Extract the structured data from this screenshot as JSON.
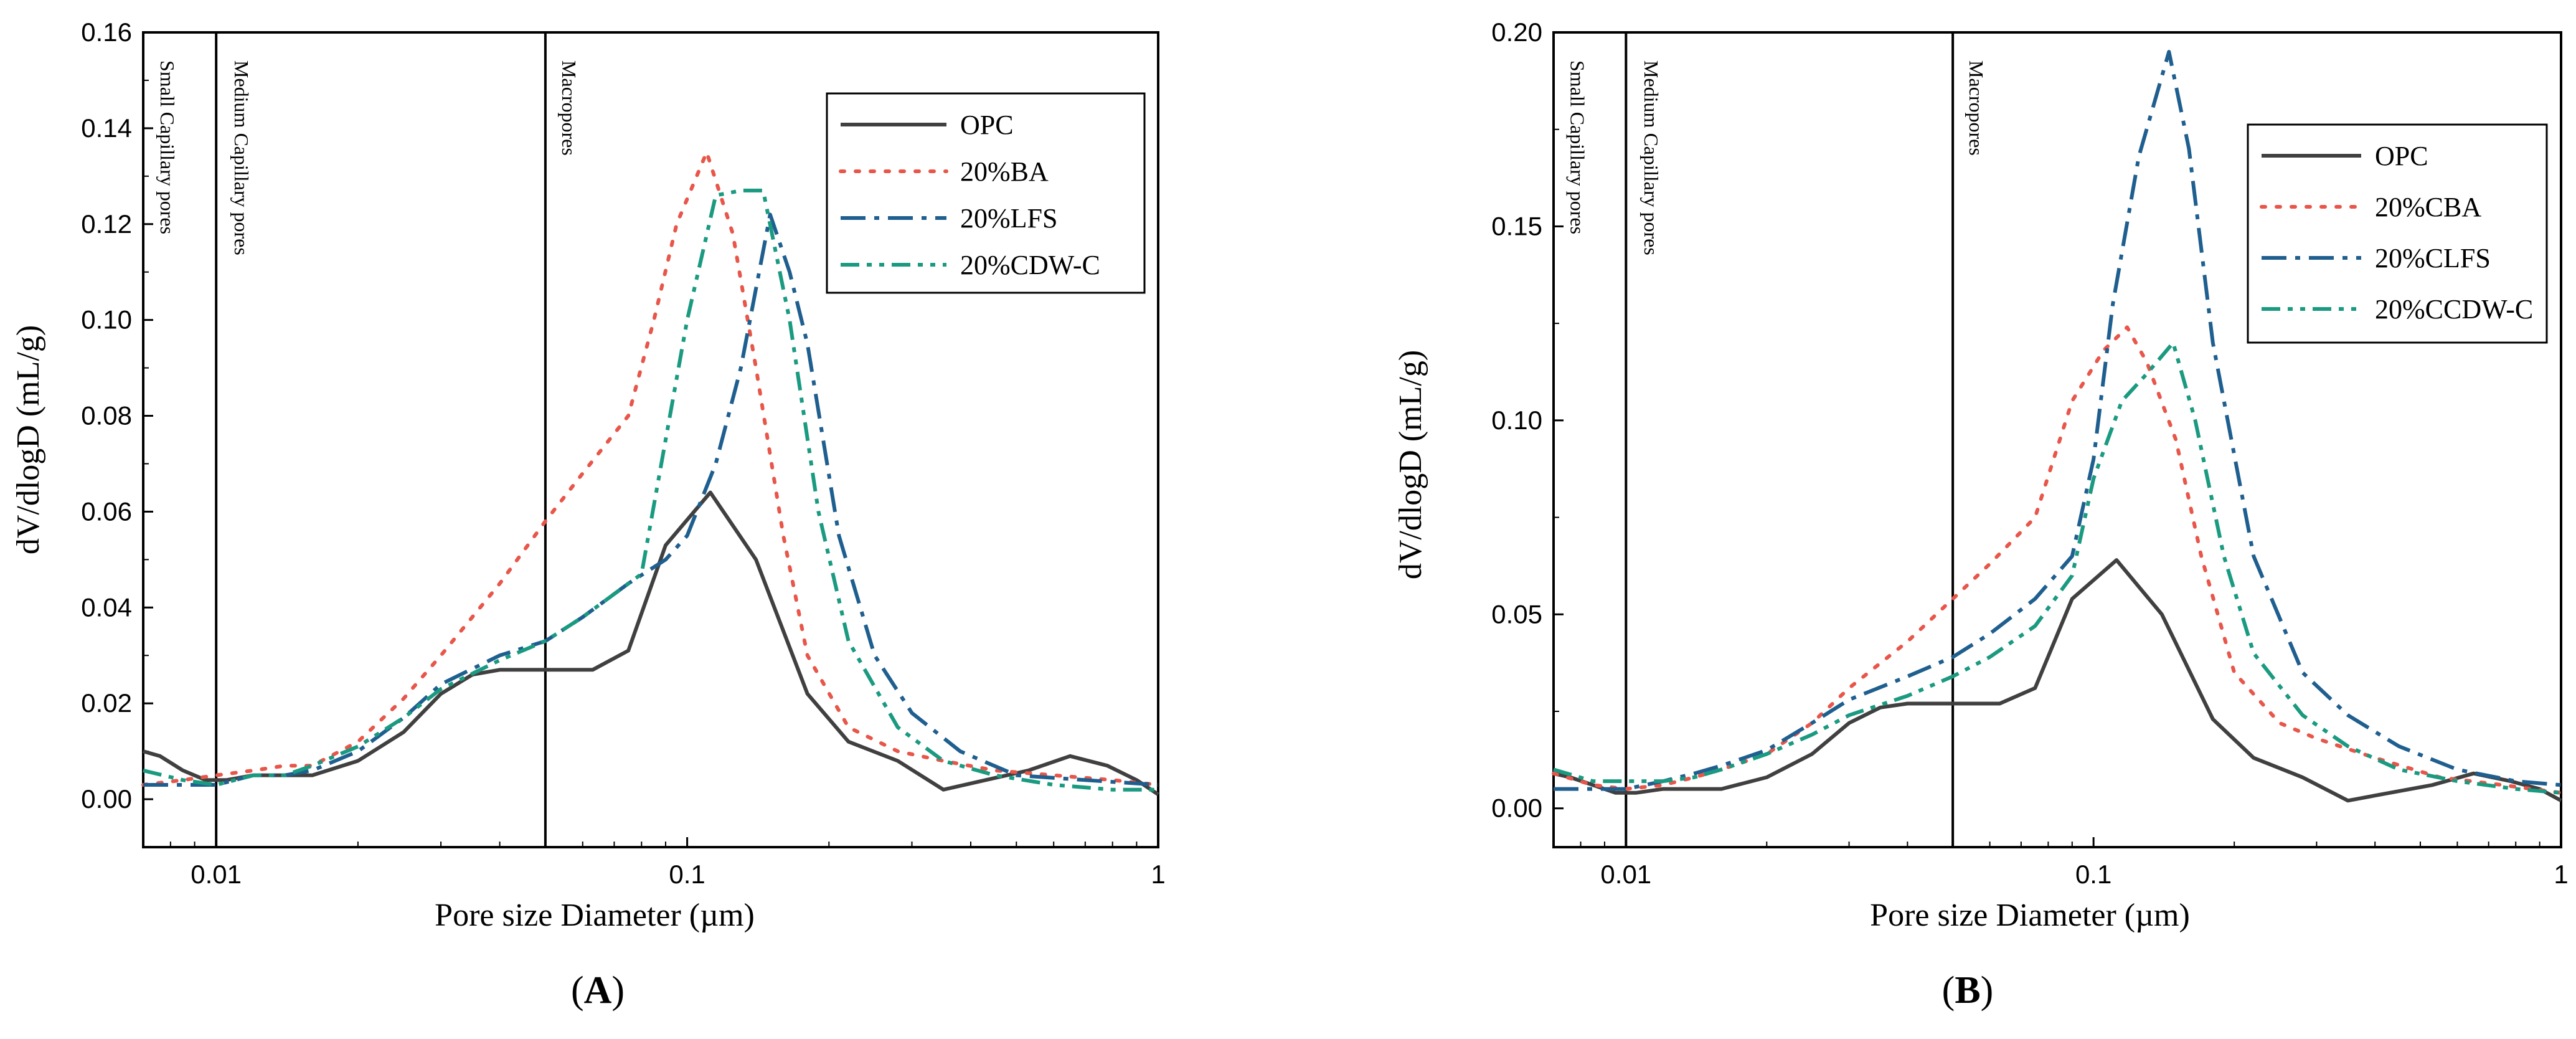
{
  "colors": {
    "OPC": "#404040",
    "BA": "#e8564a",
    "LFS": "#1f5f8f",
    "CDW": "#1a9a80",
    "axis": "#000000"
  },
  "chart_data": [
    {
      "panel_label": "A",
      "type": "line",
      "xlabel": "Pore size Diameter (µm)",
      "ylabel": "dV/dlogD (mL/g)",
      "x_scale": "log",
      "xlim": [
        0.007,
        1
      ],
      "ylim": [
        -0.01,
        0.16
      ],
      "xticks": [
        {
          "value": 0.01,
          "label": "0.01"
        },
        {
          "value": 0.1,
          "label": "0.1"
        },
        {
          "value": 1,
          "label": "1"
        }
      ],
      "yticks": [
        {
          "value": 0,
          "label": "0.00"
        },
        {
          "value": 0.02,
          "label": "0.02"
        },
        {
          "value": 0.04,
          "label": "0.04"
        },
        {
          "value": 0.06,
          "label": "0.06"
        },
        {
          "value": 0.08,
          "label": "0.08"
        },
        {
          "value": 0.1,
          "label": "0.10"
        },
        {
          "value": 0.12,
          "label": "0.12"
        },
        {
          "value": 0.14,
          "label": "0.14"
        },
        {
          "value": 0.16,
          "label": "0.16"
        }
      ],
      "region_lines": [
        0.01,
        0.05
      ],
      "region_labels": [
        {
          "text": "Small Capillary pores",
          "x": 0.0073
        },
        {
          "text": "Medium Capillary pores",
          "x": 0.0105
        },
        {
          "text": "Macropores",
          "x": 0.052
        }
      ],
      "legend_position": "top-right",
      "series": [
        {
          "name": "OPC",
          "style": "solid",
          "color_key": "OPC",
          "x": [
            0.007,
            0.0076,
            0.0085,
            0.0095,
            0.0105,
            0.012,
            0.014,
            0.016,
            0.02,
            0.025,
            0.03,
            0.035,
            0.04,
            0.05,
            0.063,
            0.075,
            0.09,
            0.112,
            0.14,
            0.18,
            0.22,
            0.28,
            0.35,
            0.43,
            0.53,
            0.65,
            0.78,
            0.9,
            1.0
          ],
          "y": [
            0.01,
            0.009,
            0.006,
            0.004,
            0.004,
            0.005,
            0.005,
            0.005,
            0.008,
            0.014,
            0.022,
            0.026,
            0.027,
            0.027,
            0.027,
            0.031,
            0.053,
            0.064,
            0.05,
            0.022,
            0.012,
            0.008,
            0.002,
            0.004,
            0.006,
            0.009,
            0.007,
            0.004,
            0.001
          ]
        },
        {
          "name": "20%BA",
          "style": "dotted",
          "color_key": "BA",
          "x": [
            0.007,
            0.0085,
            0.01,
            0.012,
            0.014,
            0.016,
            0.02,
            0.025,
            0.03,
            0.04,
            0.05,
            0.06,
            0.075,
            0.085,
            0.095,
            0.11,
            0.125,
            0.14,
            0.16,
            0.18,
            0.22,
            0.28,
            0.35,
            0.45,
            0.6,
            0.8,
            1.0
          ],
          "y": [
            0.003,
            0.004,
            0.005,
            0.006,
            0.007,
            0.007,
            0.012,
            0.021,
            0.03,
            0.045,
            0.058,
            0.068,
            0.08,
            0.1,
            0.12,
            0.135,
            0.118,
            0.09,
            0.055,
            0.03,
            0.015,
            0.01,
            0.008,
            0.006,
            0.005,
            0.004,
            0.003
          ]
        },
        {
          "name": "20%LFS",
          "style": "dashdot",
          "color_key": "LFS",
          "x": [
            0.007,
            0.0085,
            0.01,
            0.012,
            0.014,
            0.016,
            0.02,
            0.025,
            0.03,
            0.04,
            0.05,
            0.06,
            0.075,
            0.09,
            0.1,
            0.115,
            0.13,
            0.15,
            0.165,
            0.18,
            0.21,
            0.25,
            0.3,
            0.38,
            0.5,
            0.7,
            1.0
          ],
          "y": [
            0.003,
            0.003,
            0.003,
            0.005,
            0.005,
            0.006,
            0.01,
            0.017,
            0.024,
            0.03,
            0.033,
            0.038,
            0.045,
            0.05,
            0.055,
            0.07,
            0.09,
            0.122,
            0.11,
            0.095,
            0.055,
            0.03,
            0.018,
            0.01,
            0.005,
            0.004,
            0.003
          ]
        },
        {
          "name": "20%CDW-C",
          "style": "dashdotdot",
          "color_key": "CDW",
          "x": [
            0.007,
            0.0085,
            0.01,
            0.012,
            0.014,
            0.016,
            0.02,
            0.025,
            0.03,
            0.04,
            0.05,
            0.06,
            0.08,
            0.09,
            0.1,
            0.115,
            0.13,
            0.145,
            0.165,
            0.19,
            0.22,
            0.28,
            0.35,
            0.45,
            0.6,
            0.8,
            1.0
          ],
          "y": [
            0.006,
            0.004,
            0.003,
            0.005,
            0.005,
            0.007,
            0.011,
            0.017,
            0.023,
            0.029,
            0.033,
            0.038,
            0.047,
            0.075,
            0.1,
            0.126,
            0.127,
            0.127,
            0.1,
            0.06,
            0.033,
            0.015,
            0.008,
            0.005,
            0.003,
            0.002,
            0.002
          ]
        }
      ]
    },
    {
      "panel_label": "B",
      "type": "line",
      "xlabel": "Pore size Diameter (µm)",
      "ylabel": "dV/dlogD (mL/g)",
      "x_scale": "log",
      "xlim": [
        0.007,
        1
      ],
      "ylim": [
        -0.01,
        0.2
      ],
      "xticks": [
        {
          "value": 0.01,
          "label": "0.01"
        },
        {
          "value": 0.1,
          "label": "0.1"
        },
        {
          "value": 1,
          "label": "1"
        }
      ],
      "yticks": [
        {
          "value": 0,
          "label": "0.00"
        },
        {
          "value": 0.05,
          "label": "0.05"
        },
        {
          "value": 0.1,
          "label": "0.10"
        },
        {
          "value": 0.15,
          "label": "0.15"
        },
        {
          "value": 0.2,
          "label": "0.20"
        }
      ],
      "region_lines": [
        0.01,
        0.05
      ],
      "region_labels": [
        {
          "text": "Small Capillary pores",
          "x": 0.0073
        },
        {
          "text": "Medium Capillary pores",
          "x": 0.0105
        },
        {
          "text": "Macropores",
          "x": 0.052
        }
      ],
      "legend_position": "top-right",
      "series": [
        {
          "name": "OPC",
          "style": "solid",
          "color_key": "OPC",
          "x": [
            0.007,
            0.0076,
            0.0085,
            0.0095,
            0.0105,
            0.012,
            0.014,
            0.016,
            0.02,
            0.025,
            0.03,
            0.035,
            0.04,
            0.05,
            0.063,
            0.075,
            0.09,
            0.112,
            0.14,
            0.18,
            0.22,
            0.28,
            0.35,
            0.43,
            0.53,
            0.65,
            0.78,
            0.9,
            1.0
          ],
          "y": [
            0.009,
            0.008,
            0.006,
            0.004,
            0.004,
            0.005,
            0.005,
            0.005,
            0.008,
            0.014,
            0.022,
            0.026,
            0.027,
            0.027,
            0.027,
            0.031,
            0.054,
            0.064,
            0.05,
            0.023,
            0.013,
            0.008,
            0.002,
            0.004,
            0.006,
            0.009,
            0.007,
            0.005,
            0.002
          ]
        },
        {
          "name": "20%CBA",
          "style": "dotted",
          "color_key": "BA",
          "x": [
            0.007,
            0.0085,
            0.01,
            0.012,
            0.014,
            0.016,
            0.02,
            0.025,
            0.03,
            0.04,
            0.05,
            0.06,
            0.075,
            0.09,
            0.105,
            0.118,
            0.13,
            0.15,
            0.17,
            0.2,
            0.25,
            0.3,
            0.4,
            0.55,
            0.75,
            1.0
          ],
          "y": [
            0.009,
            0.006,
            0.005,
            0.006,
            0.008,
            0.01,
            0.014,
            0.022,
            0.031,
            0.043,
            0.054,
            0.063,
            0.075,
            0.105,
            0.118,
            0.124,
            0.115,
            0.095,
            0.065,
            0.035,
            0.022,
            0.018,
            0.013,
            0.008,
            0.006,
            0.004
          ]
        },
        {
          "name": "20%CLFS",
          "style": "dashdot",
          "color_key": "LFS",
          "x": [
            0.007,
            0.0085,
            0.01,
            0.012,
            0.014,
            0.016,
            0.02,
            0.025,
            0.03,
            0.04,
            0.05,
            0.06,
            0.075,
            0.09,
            0.1,
            0.11,
            0.125,
            0.145,
            0.16,
            0.18,
            0.22,
            0.28,
            0.35,
            0.45,
            0.6,
            0.8,
            1.0
          ],
          "y": [
            0.005,
            0.005,
            0.005,
            0.007,
            0.009,
            0.011,
            0.015,
            0.022,
            0.028,
            0.034,
            0.039,
            0.045,
            0.054,
            0.065,
            0.09,
            0.13,
            0.168,
            0.195,
            0.17,
            0.12,
            0.065,
            0.035,
            0.024,
            0.016,
            0.01,
            0.007,
            0.006
          ]
        },
        {
          "name": "20%CCDW-C",
          "style": "dashdotdot",
          "color_key": "CDW",
          "x": [
            0.007,
            0.0085,
            0.01,
            0.012,
            0.014,
            0.016,
            0.02,
            0.025,
            0.03,
            0.04,
            0.05,
            0.06,
            0.075,
            0.09,
            0.1,
            0.115,
            0.13,
            0.148,
            0.165,
            0.19,
            0.22,
            0.28,
            0.35,
            0.45,
            0.6,
            0.8,
            1.0
          ],
          "y": [
            0.01,
            0.007,
            0.007,
            0.007,
            0.008,
            0.01,
            0.014,
            0.019,
            0.024,
            0.029,
            0.034,
            0.039,
            0.047,
            0.06,
            0.085,
            0.105,
            0.112,
            0.12,
            0.1,
            0.065,
            0.04,
            0.024,
            0.016,
            0.01,
            0.007,
            0.005,
            0.004
          ]
        }
      ]
    }
  ]
}
